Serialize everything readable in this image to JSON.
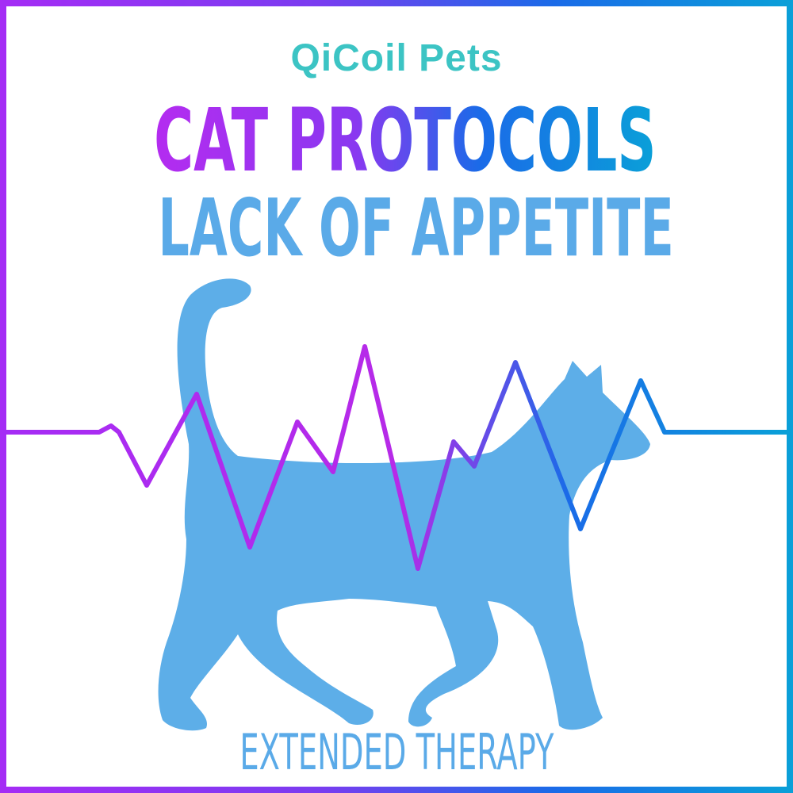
{
  "logo": {
    "text": "QiCoil Pets",
    "color": "#3cc4c4"
  },
  "title": "CAT PROTOCOLS",
  "subtitle": "LACK OF APPETITE",
  "footer": "EXTENDED THERAPY",
  "colors": {
    "silhouette": "#5daee8",
    "gradient_start": "#a52cf5",
    "gradient_end": "#0aa0d8"
  }
}
